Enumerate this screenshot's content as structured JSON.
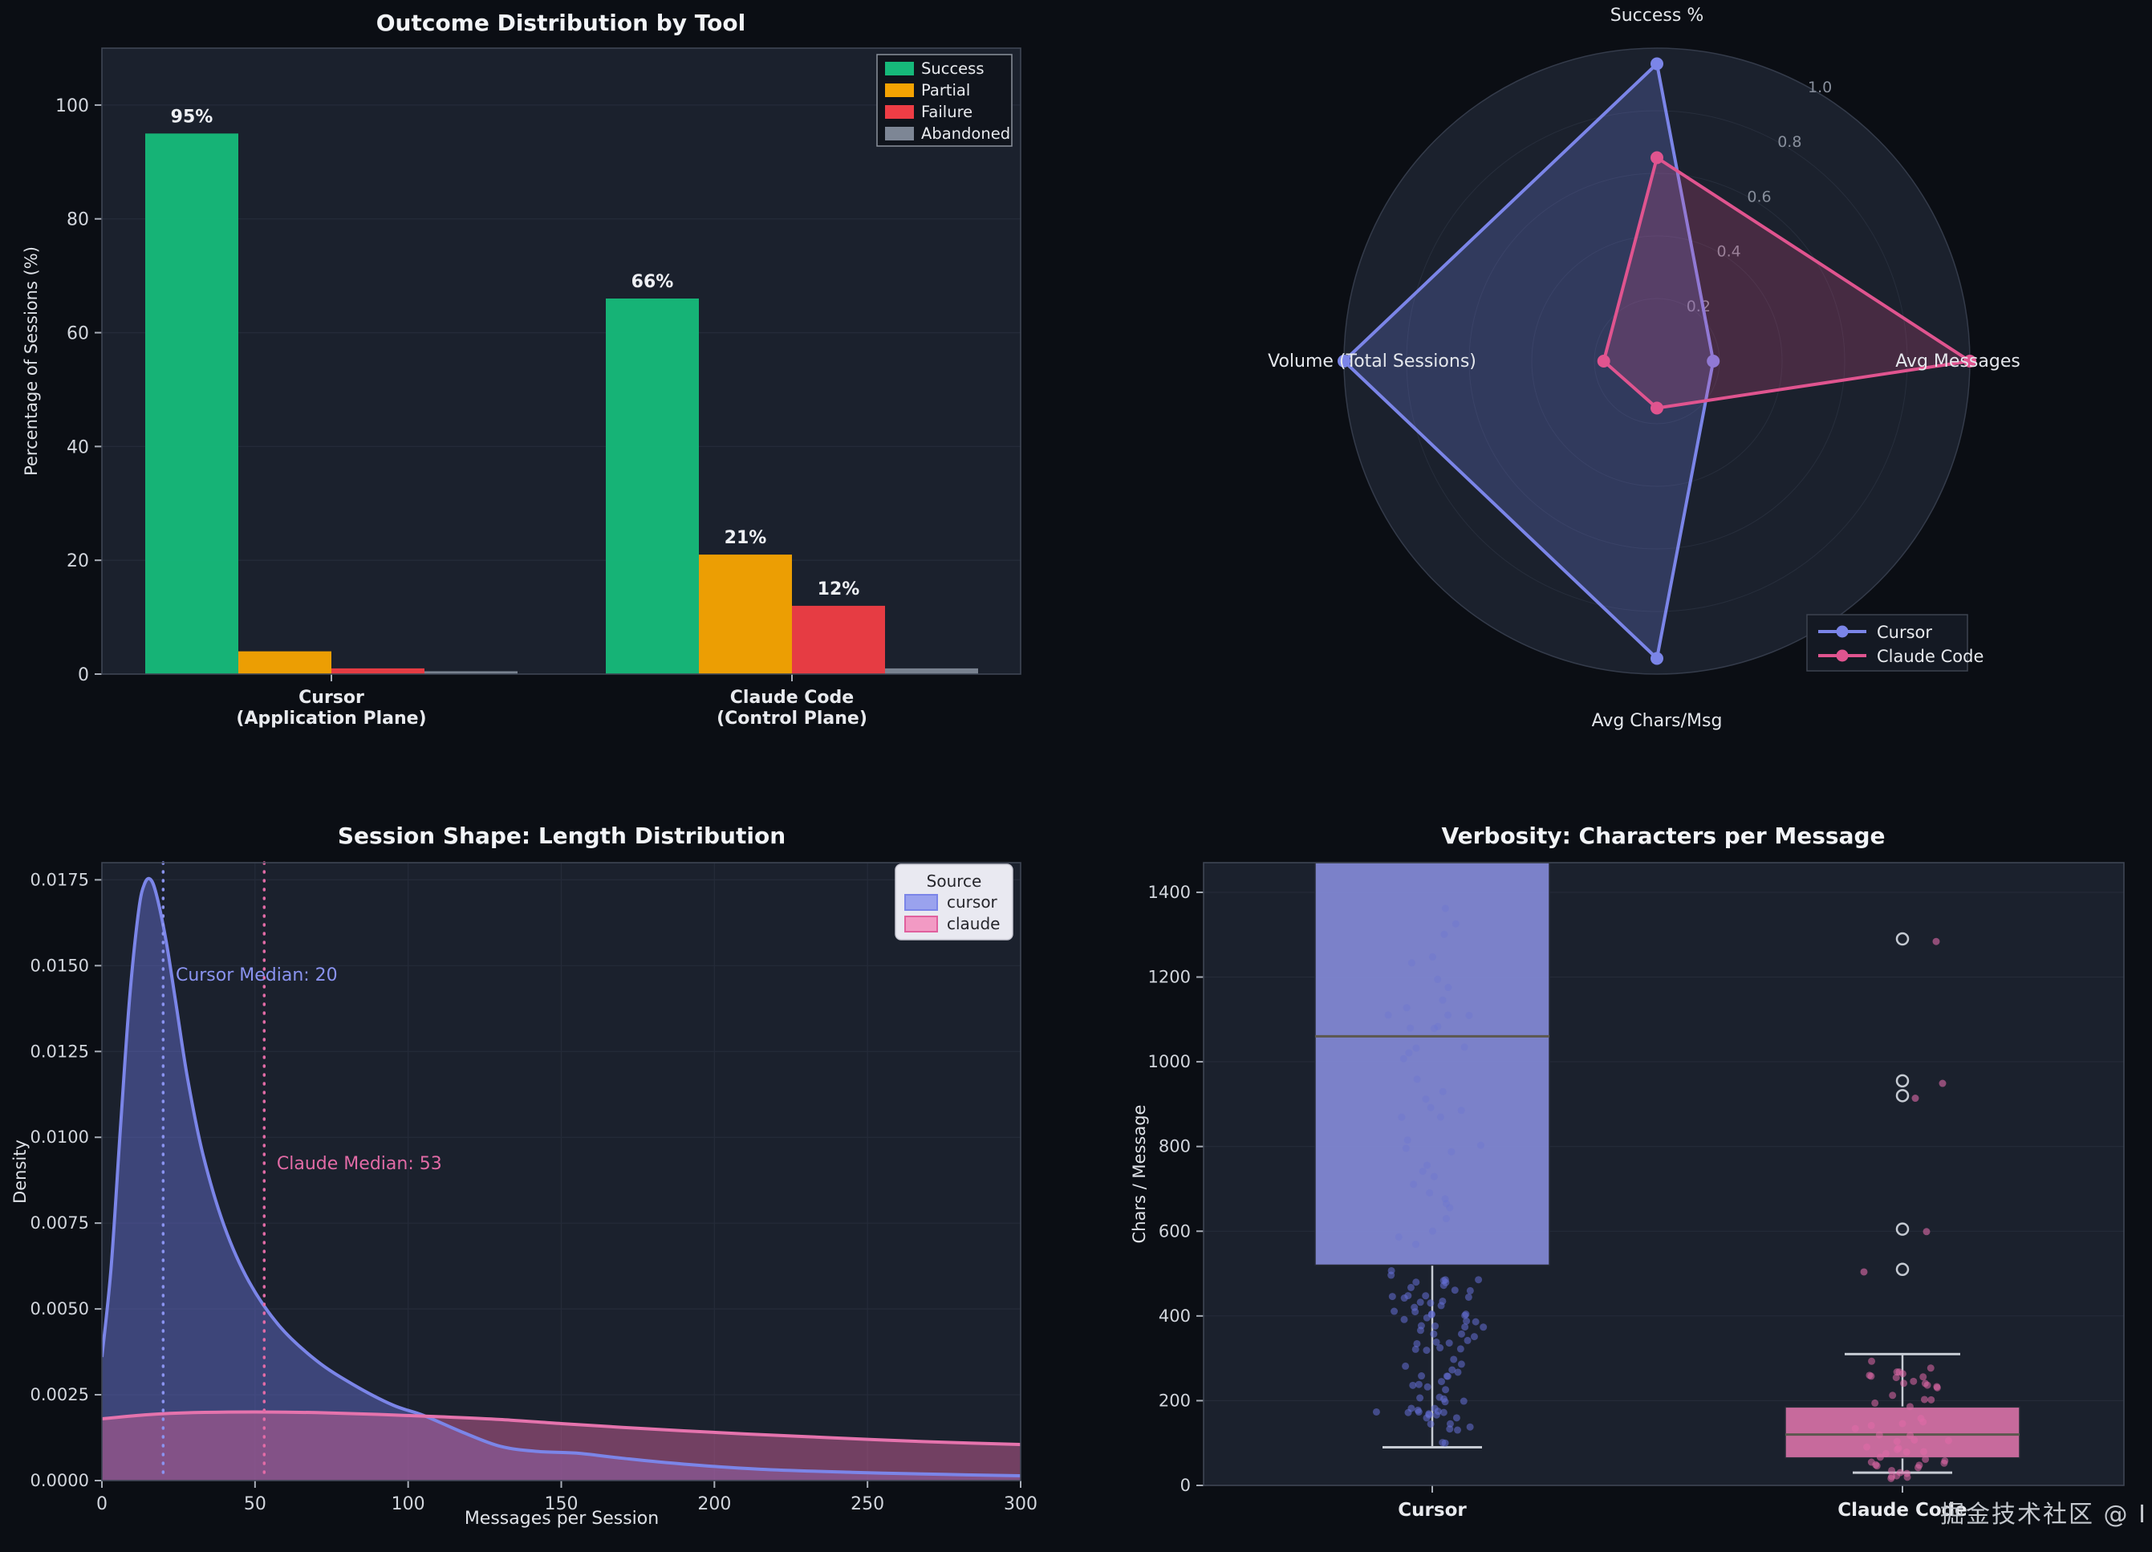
{
  "page": {
    "background": "#0b0e14",
    "watermark": "掘金技术社区 @ I"
  },
  "chart_data": {
    "outcome_bar": {
      "type": "bar",
      "title": "Outcome Distribution by Tool",
      "ylabel": "Percentage of Sessions (%)",
      "ylim": [
        0,
        110
      ],
      "yticks": [
        0,
        20,
        40,
        60,
        80,
        100
      ],
      "legend_position": "top-right",
      "grid": "horizontal-faint",
      "series": [
        {
          "name": "Success",
          "color": "#16b97a"
        },
        {
          "name": "Partial",
          "color": "#f5a302"
        },
        {
          "name": "Failure",
          "color": "#ee3d45"
        },
        {
          "name": "Abandoned",
          "color": "#7d8695"
        }
      ],
      "groups": [
        {
          "label": [
            "Cursor",
            "(Application Plane)"
          ],
          "values": [
            95,
            4,
            1,
            0.5
          ],
          "bar_labels": [
            "95%",
            "",
            "",
            ""
          ]
        },
        {
          "label": [
            "Claude Code",
            "(Control Plane)"
          ],
          "values": [
            66,
            21,
            12,
            1
          ],
          "bar_labels": [
            "66%",
            "21%",
            "12%",
            ""
          ]
        }
      ]
    },
    "radar": {
      "type": "radar",
      "axes": [
        "Success %",
        "Avg Messages",
        "Avg Chars/Msg",
        "Volume (Total Sessions)"
      ],
      "rticks": [
        "0.2",
        "0.4",
        "0.6",
        "0.8",
        "1.0"
      ],
      "rmax": 1.0,
      "legend_position": "bottom-right",
      "series": [
        {
          "name": "Cursor",
          "color": "#7b85e8",
          "fill": "rgba(104,116,205,0.30)",
          "values": [
            0.95,
            0.18,
            0.95,
            1.0
          ]
        },
        {
          "name": "Claude Code",
          "color": "#e0548f",
          "fill": "rgba(224,84,143,0.22)",
          "values": [
            0.65,
            1.0,
            0.15,
            0.17
          ]
        }
      ]
    },
    "length_kde": {
      "type": "area",
      "title": "Session Shape: Length Distribution",
      "xlabel": "Messages per Session",
      "ylabel": "Density",
      "xlim": [
        0,
        300
      ],
      "xticks": [
        0,
        50,
        100,
        150,
        200,
        250,
        300
      ],
      "ylim": [
        0,
        0.018
      ],
      "ytick_labels": [
        "0.0000",
        "0.0025",
        "0.0050",
        "0.0075",
        "0.0100",
        "0.0125",
        "0.0150",
        "0.0175"
      ],
      "grid": "both-faint",
      "legend": {
        "title": "Source",
        "items": [
          {
            "label": "cursor",
            "color": "#9aa2ee",
            "edge": "#7b85e8"
          },
          {
            "label": "claude",
            "color": "#f29ac4",
            "edge": "#e0609e"
          }
        ]
      },
      "medians": [
        {
          "label": "Cursor Median: 20",
          "x": 20,
          "color": "#8a93f0"
        },
        {
          "label": "Claude Median: 53",
          "x": 53,
          "color": "#e26ba6"
        }
      ],
      "series": [
        {
          "name": "cursor",
          "color": "#7b85e8",
          "fill": "rgba(104,114,214,0.45)",
          "points": [
            [
              0,
              0.0036
            ],
            [
              3,
              0.0062
            ],
            [
              6,
              0.0102
            ],
            [
              9,
              0.014
            ],
            [
              12,
              0.0166
            ],
            [
              14,
              0.0174
            ],
            [
              16,
              0.0175
            ],
            [
              18,
              0.017
            ],
            [
              21,
              0.0157
            ],
            [
              24,
              0.014
            ],
            [
              28,
              0.0117
            ],
            [
              33,
              0.0095
            ],
            [
              40,
              0.0074
            ],
            [
              48,
              0.0058
            ],
            [
              58,
              0.0045
            ],
            [
              70,
              0.0035
            ],
            [
              82,
              0.0028
            ],
            [
              95,
              0.0022
            ],
            [
              105,
              0.0019
            ],
            [
              118,
              0.0014
            ],
            [
              130,
              0.001
            ],
            [
              142,
              0.00085
            ],
            [
              155,
              0.0008
            ],
            [
              170,
              0.00065
            ],
            [
              190,
              0.00048
            ],
            [
              215,
              0.00033
            ],
            [
              245,
              0.00024
            ],
            [
              275,
              0.00018
            ],
            [
              300,
              0.00014
            ]
          ]
        },
        {
          "name": "claude",
          "color": "#e573ad",
          "fill": "rgba(196,93,148,0.52)",
          "points": [
            [
              0,
              0.0018
            ],
            [
              15,
              0.00192
            ],
            [
              30,
              0.00198
            ],
            [
              50,
              0.002
            ],
            [
              70,
              0.00198
            ],
            [
              90,
              0.00193
            ],
            [
              110,
              0.00186
            ],
            [
              130,
              0.00178
            ],
            [
              150,
              0.00166
            ],
            [
              170,
              0.00155
            ],
            [
              190,
              0.00145
            ],
            [
              210,
              0.00136
            ],
            [
              230,
              0.00128
            ],
            [
              250,
              0.0012
            ],
            [
              270,
              0.00113
            ],
            [
              300,
              0.00105
            ]
          ]
        }
      ]
    },
    "verbosity_box": {
      "type": "box",
      "title": "Verbosity: Characters per Message",
      "ylabel": "Chars / Message",
      "ylim": [
        0,
        1470
      ],
      "yticks": [
        0,
        200,
        400,
        600,
        800,
        1000,
        1200,
        1400
      ],
      "groups": [
        {
          "label": "Cursor",
          "box_color": "#8289d5",
          "point_color": "#6570d6",
          "stats": {
            "whisker_low": 90,
            "q1": 520,
            "median": 1060,
            "q3": 1470,
            "whisker_high": null
          },
          "strip": {
            "count": 85,
            "min": 95,
            "max": 515
          },
          "strip_faint": {
            "count": 42,
            "min": 530,
            "max": 1455
          },
          "outliers": []
        },
        {
          "label": "Claude Code",
          "box_color": "#d470a5",
          "point_color": "#e06aa8",
          "stats": {
            "whisker_low": 30,
            "q1": 65,
            "median": 120,
            "q3": 185,
            "whisker_high": 310
          },
          "strip": {
            "count": 52,
            "min": 15,
            "max": 305
          },
          "strip_faint": {
            "count": 0,
            "min": 0,
            "max": 0
          },
          "outliers": [
            1290,
            955,
            920,
            605,
            510
          ]
        }
      ]
    }
  }
}
